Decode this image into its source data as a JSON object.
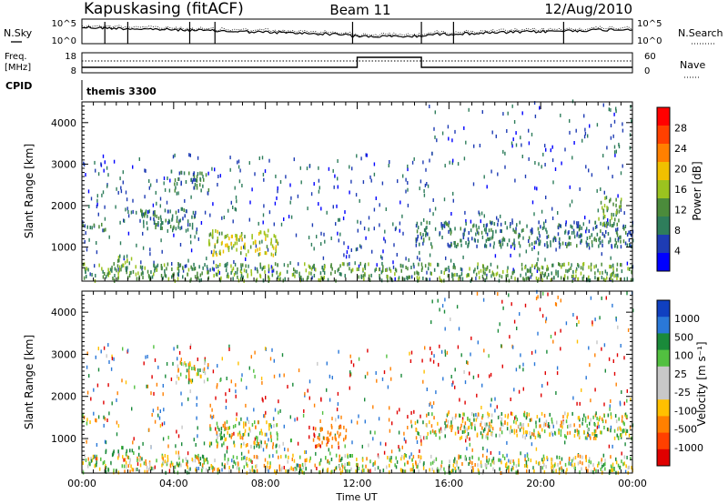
{
  "header": {
    "station": "Kapuskasing (fitACF)",
    "beam": "Beam 11",
    "date": "12/Aug/2010"
  },
  "status_panel": {
    "nsky_label": "N.Sky",
    "nsky_ticks": [
      "10^5",
      "10^0"
    ],
    "nsearch_label": "N.Search",
    "nsearch_ticks": [
      "10^5",
      "10^0"
    ],
    "freq_label_1": "Freq.",
    "freq_label_2": "[MHz]",
    "freq_ticks": [
      "18",
      "8"
    ],
    "nave_label": "Nave",
    "nave_ticks": [
      "60",
      "0"
    ],
    "cpid_label": "CPID",
    "cpid_value": "themis 3300"
  },
  "colors": {
    "power_scale": [
      "#0000ff",
      "#1e3cb4",
      "#2e7d5b",
      "#4b8b3b",
      "#9bc31f",
      "#f0c000",
      "#ff8000",
      "#ff4000",
      "#ff0000"
    ],
    "velocity_scale": [
      "#1040c0",
      "#2a78d8",
      "#1a8a3a",
      "#52c040",
      "#c8c8c8",
      "#c8c8c8",
      "#ffc000",
      "#ff8000",
      "#ff4000",
      "#e00000"
    ]
  },
  "chart_data": [
    {
      "type": "heatmap",
      "title": "Power",
      "xlabel": "",
      "ylabel": "Slant Range [km]",
      "xlim": [
        "00:00",
        "24:00"
      ],
      "x_ticks": [
        "00:00",
        "04:00",
        "08:00",
        "12:00",
        "16:00",
        "20:00",
        "00:00"
      ],
      "ylim": [
        180,
        4500
      ],
      "y_ticks": [
        1000,
        2000,
        3000,
        4000
      ],
      "colorbar": {
        "label": "Power [dB]",
        "ticks": [
          "4",
          "8",
          "12",
          "16",
          "20",
          "24",
          "28"
        ],
        "range": [
          0,
          30
        ]
      },
      "features": [
        {
          "start_h": 0.0,
          "end_h": 1.0,
          "range_low": 1350,
          "range_high": 1550,
          "value": 8
        },
        {
          "start_h": 1.5,
          "end_h": 2.3,
          "range_low": 600,
          "range_high": 800,
          "value": 12
        },
        {
          "start_h": 2.5,
          "end_h": 5.0,
          "range_low": 1400,
          "range_high": 1900,
          "value": 8
        },
        {
          "start_h": 4.0,
          "end_h": 5.5,
          "range_low": 2300,
          "range_high": 2800,
          "value": 8
        },
        {
          "start_h": 5.5,
          "end_h": 8.5,
          "range_low": 800,
          "range_high": 1400,
          "value": 16
        },
        {
          "start_h": 0.0,
          "end_h": 24.0,
          "range_low": 180,
          "range_high": 600,
          "value": 12
        },
        {
          "start_h": 14.5,
          "end_h": 24.0,
          "range_low": 1000,
          "range_high": 1600,
          "value": 8
        },
        {
          "start_h": 22.5,
          "end_h": 23.5,
          "range_low": 1500,
          "range_high": 2200,
          "value": 12
        }
      ]
    },
    {
      "type": "heatmap",
      "title": "Velocity",
      "xlabel": "Time UT",
      "ylabel": "Slant Range [km]",
      "xlim": [
        "00:00",
        "24:00"
      ],
      "x_ticks": [
        "00:00",
        "04:00",
        "08:00",
        "12:00",
        "16:00",
        "20:00",
        "00:00"
      ],
      "ylim": [
        180,
        4500
      ],
      "y_ticks": [
        1000,
        2000,
        3000,
        4000
      ],
      "colorbar": {
        "label": "Velocity [m s⁻¹]",
        "ticks": [
          "1000",
          "500",
          "100",
          "25",
          "-25",
          "-100",
          "-500",
          "-1000"
        ],
        "range": [
          -1000,
          1000
        ]
      },
      "features": [
        {
          "start_h": 0.0,
          "end_h": 1.0,
          "range_low": 1350,
          "range_high": 1550,
          "value": 0
        },
        {
          "start_h": 1.0,
          "end_h": 2.5,
          "range_low": 600,
          "range_high": 800,
          "value": 200
        },
        {
          "start_h": 4.0,
          "end_h": 5.5,
          "range_low": 2300,
          "range_high": 2800,
          "value": 0
        },
        {
          "start_h": 5.5,
          "end_h": 8.5,
          "range_low": 800,
          "range_high": 1400,
          "value": 0
        },
        {
          "start_h": 10.0,
          "end_h": 11.5,
          "range_low": 800,
          "range_high": 1300,
          "value": -400
        },
        {
          "start_h": 0.0,
          "end_h": 24.0,
          "range_low": 180,
          "range_high": 600,
          "value": 0
        },
        {
          "start_h": 14.5,
          "end_h": 24.0,
          "range_low": 1000,
          "range_high": 1600,
          "value": 0
        }
      ]
    }
  ]
}
